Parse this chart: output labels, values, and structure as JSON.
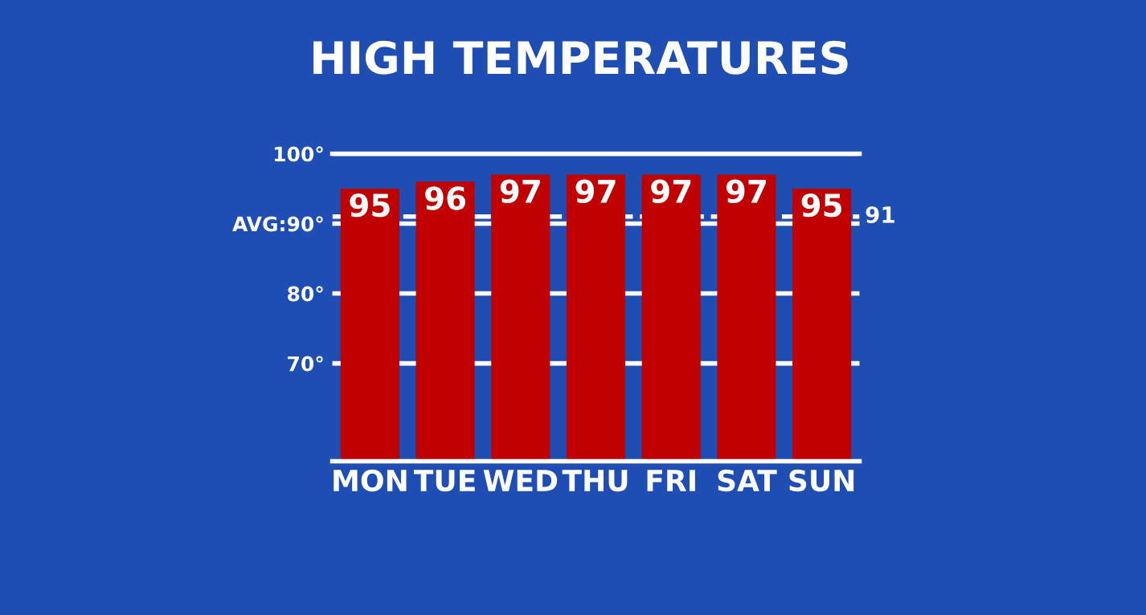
{
  "chart_data": {
    "type": "bar",
    "title": "HIGH TEMPERATURES",
    "categories": [
      "MON",
      "TUE",
      "WED",
      "THU",
      "FRI",
      "SAT",
      "SUN"
    ],
    "values": [
      95,
      96,
      97,
      97,
      97,
      97,
      95
    ],
    "color": "#c00000",
    "ylim": [
      56,
      100
    ],
    "yticks": [
      {
        "value": 70,
        "label": "70°"
      },
      {
        "value": 80,
        "label": "80°"
      },
      {
        "value": 90,
        "label": "AVG:90°"
      },
      {
        "value": 100,
        "label": "100°"
      }
    ],
    "ref_lines": [
      {
        "axis": "y",
        "value": 91,
        "label": "91",
        "color": "#ffffff",
        "line_style": "dashed"
      }
    ],
    "grid": "y",
    "data_labels": true
  }
}
